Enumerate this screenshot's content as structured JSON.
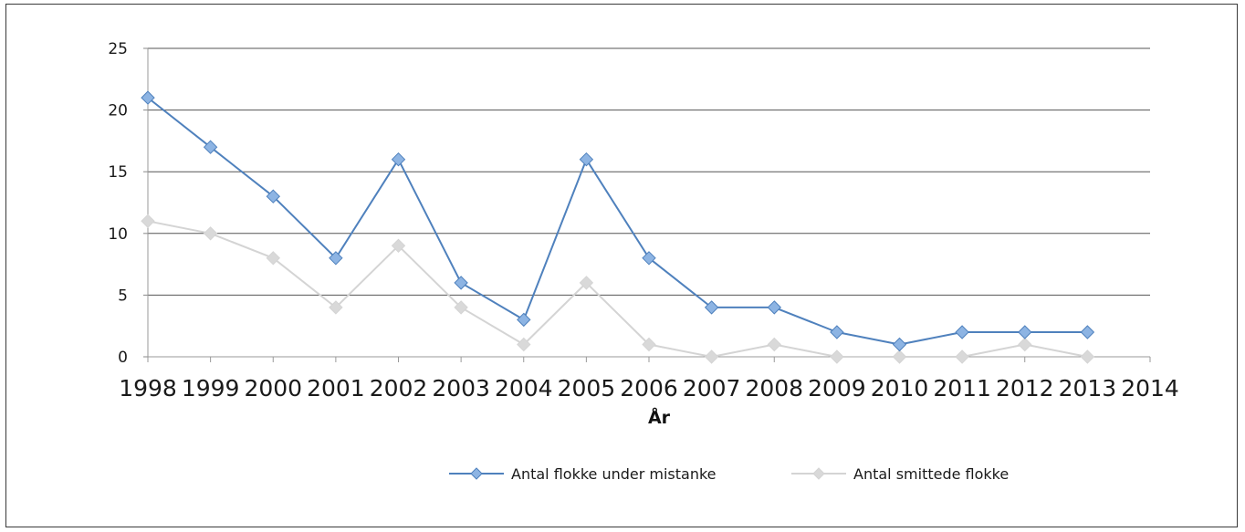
{
  "chart_data": {
    "type": "line",
    "title": "",
    "xlabel": "År",
    "ylabel": "",
    "xlim": [
      1998,
      2014
    ],
    "ylim": [
      0,
      25
    ],
    "x_ticks": [
      "1998",
      "1999",
      "2000",
      "2001",
      "2002",
      "2003",
      "2004",
      "2005",
      "2006",
      "2007",
      "2008",
      "2009",
      "2010",
      "2011",
      "2012",
      "2013",
      "2014"
    ],
    "y_ticks": [
      "0",
      "5",
      "10",
      "15",
      "20",
      "25"
    ],
    "grid": "horizontal",
    "legend_position": "bottom",
    "x": [
      1998,
      1999,
      2000,
      2001,
      2002,
      2003,
      2004,
      2005,
      2006,
      2007,
      2008,
      2009,
      2010,
      2011,
      2012,
      2013
    ],
    "series": [
      {
        "name": "Antal flokke under mistanke",
        "color": "#4f81bd",
        "marker_color": "#8db4e3",
        "values": [
          21,
          17,
          13,
          8,
          16,
          6,
          3,
          16,
          8,
          4,
          4,
          2,
          1,
          2,
          2,
          2
        ]
      },
      {
        "name": "Antal smittede flokke",
        "color": "#d4d4d4",
        "marker_color": "#d9d9d9",
        "values": [
          11,
          10,
          8,
          4,
          9,
          4,
          1,
          6,
          1,
          0,
          1,
          0,
          0,
          0,
          1,
          0
        ]
      }
    ]
  }
}
